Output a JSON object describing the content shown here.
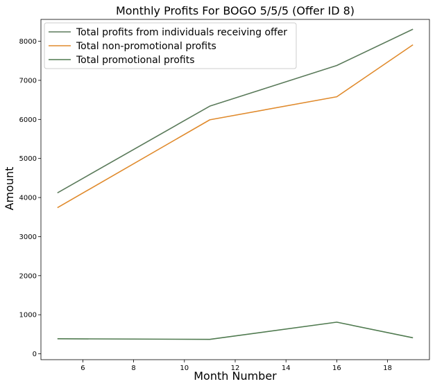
{
  "chart_data": {
    "type": "line",
    "title": "Monthly Profits For BOGO 5/5/5 (Offer ID 8)",
    "xlabel": "Month Number",
    "ylabel": "Amount",
    "xlim": [
      4.35,
      19.65
    ],
    "ylim": [
      -150,
      8560
    ],
    "xticks": [
      6,
      8,
      10,
      12,
      14,
      16,
      18
    ],
    "yticks": [
      0,
      1000,
      2000,
      3000,
      4000,
      5000,
      6000,
      7000,
      8000
    ],
    "grid": false,
    "legend_position": "top-left",
    "x": [
      5,
      11,
      16,
      19
    ],
    "series": [
      {
        "name": "Total profits from individuals receiving offer",
        "color": "#5a7a5a",
        "values": [
          4120,
          6340,
          7380,
          8310
        ]
      },
      {
        "name": "Total non-promotional profits",
        "color": "#e08a2c",
        "values": [
          3740,
          5990,
          6580,
          7910
        ]
      },
      {
        "name": "Total promotional profits",
        "color": "#4f7a4f",
        "values": [
          385,
          370,
          810,
          410
        ]
      }
    ]
  }
}
